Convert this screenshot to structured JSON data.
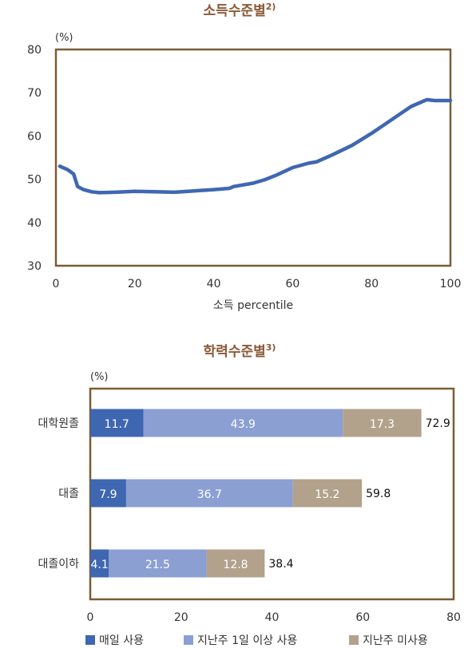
{
  "chart_data": [
    {
      "type": "line",
      "title": "소득수준별",
      "title_note": "2)",
      "unit": "(%)",
      "xlabel": "소득 percentile",
      "ylabel": "",
      "xlim": [
        0,
        100
      ],
      "ylim": [
        30,
        80
      ],
      "xticks": [
        0,
        20,
        40,
        60,
        80,
        100
      ],
      "yticks": [
        30,
        40,
        50,
        60,
        70,
        80
      ],
      "grid": false,
      "series": [
        {
          "color": "#3f67b1",
          "x": [
            1,
            3,
            4.5,
            5.5,
            7,
            9,
            11,
            15,
            20,
            25,
            30,
            35,
            40,
            44,
            45,
            50,
            53,
            56,
            60,
            64,
            66,
            70,
            75,
            80,
            85,
            90,
            94,
            96,
            100
          ],
          "y": [
            53.0,
            52.2,
            51.2,
            48.3,
            47.6,
            47.1,
            46.9,
            47.0,
            47.2,
            47.1,
            47.0,
            47.3,
            47.6,
            47.9,
            48.3,
            49.1,
            49.9,
            51.0,
            52.7,
            53.7,
            54.0,
            55.6,
            57.8,
            60.6,
            63.7,
            66.8,
            68.4,
            68.2,
            68.2
          ]
        }
      ]
    },
    {
      "type": "bar",
      "orientation": "horizontal",
      "stacked": true,
      "title": "학력수준별",
      "title_note": "3)",
      "unit": "(%)",
      "categories": [
        "대학원졸",
        "대졸",
        "대졸이하"
      ],
      "xlim": [
        0,
        80
      ],
      "xticks": [
        0,
        20,
        40,
        60,
        80
      ],
      "totals": [
        "72.9",
        "59.8",
        "38.4"
      ],
      "legend_position": "bottom",
      "series": [
        {
          "name": "매일 사용",
          "color": "#3f67b1",
          "values": [
            11.7,
            7.9,
            4.1
          ],
          "labels": [
            "11.7",
            "7.9",
            "4.1"
          ]
        },
        {
          "name": "지난주 1일 이상 사용",
          "color": "#8b9fd3",
          "values": [
            43.9,
            36.7,
            21.5
          ],
          "labels": [
            "43.9",
            "36.7",
            "21.5"
          ]
        },
        {
          "name": "지난주 미사용",
          "color": "#b2a28c",
          "values": [
            17.3,
            15.2,
            12.8
          ],
          "labels": [
            "17.3",
            "15.2",
            "12.8"
          ]
        }
      ]
    }
  ],
  "colors": {
    "title": "#8a5a38",
    "frame": "#7b5d34",
    "text": "#333333",
    "bar_label": "#ffffff"
  }
}
